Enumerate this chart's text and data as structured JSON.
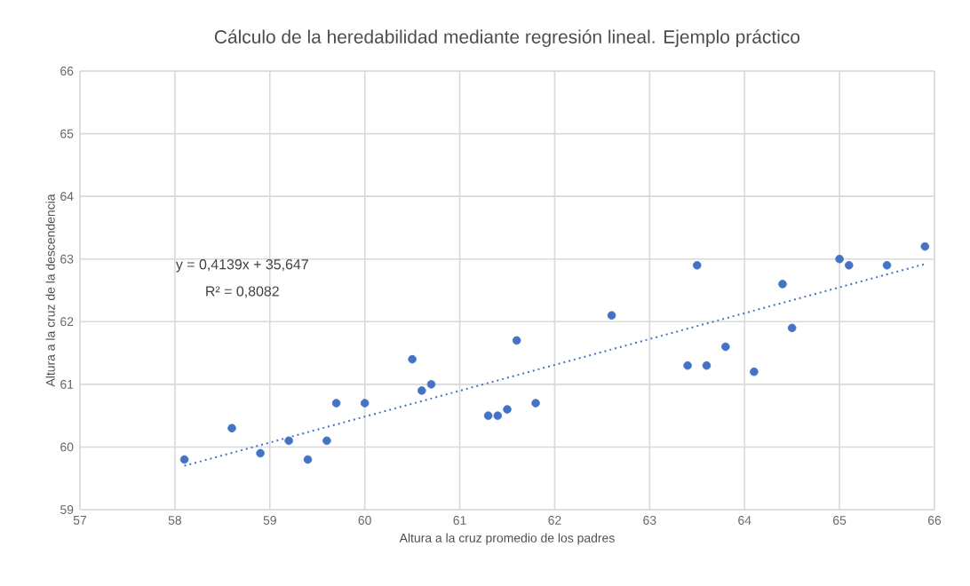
{
  "chart_data": {
    "type": "scatter",
    "title": "Cálculo de la heredabilidad mediante regresión lineal. Ejemplo práctico",
    "xlabel": "Altura a la cruz  promedio de los padres",
    "ylabel": "Altura a la cruz de la descendencia",
    "annotations": [
      "y = 0,4139x + 35,647",
      "R² = 0,8082"
    ],
    "series": [
      {
        "color": "#4472c4",
        "marker": "circle",
        "x": [
          58.1,
          58.6,
          58.9,
          59.2,
          59.4,
          59.6,
          59.7,
          60.0,
          60.5,
          60.6,
          60.7,
          61.3,
          61.4,
          61.5,
          61.6,
          61.8,
          62.6,
          63.4,
          63.5,
          63.6,
          63.8,
          64.1,
          64.4,
          64.5,
          65.0,
          65.1,
          65.5,
          65.9
        ],
        "values": [
          59.8,
          60.3,
          59.9,
          60.1,
          59.8,
          60.1,
          60.7,
          60.7,
          61.4,
          60.9,
          61.0,
          60.5,
          60.5,
          60.6,
          61.7,
          60.7,
          62.1,
          61.3,
          62.9,
          61.3,
          61.6,
          61.2,
          62.6,
          61.9,
          63.0,
          62.9,
          62.9,
          63.2
        ]
      },
      {
        "type": "line",
        "color": "#4472c4",
        "line_style": "dotted",
        "marker": "none",
        "x": [
          58.1,
          65.9
        ],
        "values": [
          59.7,
          62.92
        ]
      }
    ],
    "xlim": [
      57,
      66
    ],
    "xticks": [
      57,
      58,
      59,
      60,
      61,
      62,
      63,
      64,
      65,
      66
    ],
    "ylim": [
      59,
      66
    ],
    "yticks": [
      59,
      60,
      61,
      62,
      63,
      64,
      65,
      66
    ],
    "grid": true
  }
}
